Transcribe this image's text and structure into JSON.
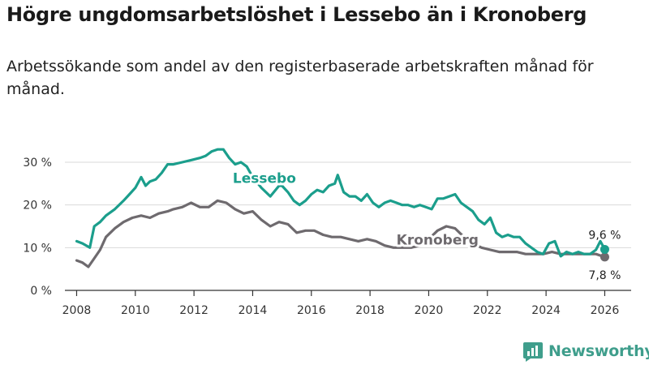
{
  "title": "Högre ungdomsarbetslöshet i Lessebo än i Kronoberg",
  "subtitle": "Arbetssökande som andel av den registerbaserade arbetskraften månad för månad.",
  "brand": {
    "name": "Newsworthy",
    "icon": "newsworthy-logo-icon",
    "color": "#3f9e8c"
  },
  "chart_data": {
    "type": "line",
    "title": "Högre ungdomsarbetslöshet i Lessebo än i Kronoberg",
    "xlabel": "",
    "ylabel": "",
    "xlim": [
      2007.6,
      2026.9
    ],
    "ylim": [
      0,
      30
    ],
    "grid": true,
    "y_ticks": [
      0,
      10,
      20,
      30
    ],
    "y_tick_labels": [
      "0 %",
      "10 %",
      "20 %",
      "30 %"
    ],
    "x_ticks": [
      2008,
      2010,
      2012,
      2014,
      2016,
      2018,
      2020,
      2022,
      2024,
      2026
    ],
    "x_tick_labels": [
      "2008",
      "2010",
      "2012",
      "2014",
      "2016",
      "2018",
      "2020",
      "2022",
      "2024",
      "2026"
    ],
    "series": [
      {
        "name": "Lessebo",
        "color": "#1b9e8c",
        "x": [
          2008.0,
          2008.2,
          2008.45,
          2008.6,
          2008.8,
          2009.0,
          2009.3,
          2009.6,
          2009.8,
          2010.0,
          2010.2,
          2010.35,
          2010.5,
          2010.7,
          2010.9,
          2011.1,
          2011.3,
          2011.6,
          2011.9,
          2012.2,
          2012.4,
          2012.6,
          2012.8,
          2013.0,
          2013.2,
          2013.4,
          2013.6,
          2013.8,
          2014.0,
          2014.3,
          2014.6,
          2014.9,
          2015.0,
          2015.2,
          2015.4,
          2015.6,
          2015.8,
          2016.0,
          2016.2,
          2016.4,
          2016.6,
          2016.8,
          2016.9,
          2017.1,
          2017.3,
          2017.5,
          2017.7,
          2017.9,
          2018.1,
          2018.3,
          2018.5,
          2018.7,
          2018.9,
          2019.1,
          2019.3,
          2019.5,
          2019.7,
          2019.9,
          2020.1,
          2020.3,
          2020.5,
          2020.7,
          2020.9,
          2021.1,
          2021.3,
          2021.5,
          2021.7,
          2021.9,
          2022.1,
          2022.3,
          2022.5,
          2022.7,
          2022.9,
          2023.1,
          2023.3,
          2023.5,
          2023.7,
          2023.9,
          2024.1,
          2024.3,
          2024.5,
          2024.7,
          2024.9,
          2025.1,
          2025.3,
          2025.5,
          2025.7,
          2025.85,
          2026.0
        ],
        "y": [
          11.5,
          11.0,
          10.0,
          15.0,
          16.0,
          17.5,
          19.0,
          21.0,
          22.5,
          24.0,
          26.5,
          24.5,
          25.5,
          26.0,
          27.5,
          29.5,
          29.5,
          30.0,
          30.5,
          31.0,
          31.5,
          32.5,
          33.0,
          33.0,
          31.0,
          29.5,
          30.0,
          29.0,
          26.5,
          24.0,
          22.0,
          24.5,
          24.5,
          23.0,
          21.0,
          20.0,
          21.0,
          22.5,
          23.5,
          23.0,
          24.5,
          25.0,
          27.0,
          23.0,
          22.0,
          22.0,
          21.0,
          22.5,
          20.5,
          19.5,
          20.5,
          21.0,
          20.5,
          20.0,
          20.0,
          19.5,
          20.0,
          19.5,
          19.0,
          21.5,
          21.5,
          22.0,
          22.5,
          20.5,
          19.5,
          18.5,
          16.5,
          15.5,
          17.0,
          13.5,
          12.5,
          13.0,
          12.5,
          12.5,
          11.0,
          10.0,
          9.0,
          8.5,
          11.0,
          11.5,
          8.0,
          9.0,
          8.5,
          9.0,
          8.5,
          8.5,
          9.5,
          11.5,
          9.6
        ]
      },
      {
        "name": "Kronoberg",
        "color": "#6e6a6e",
        "x": [
          2008.0,
          2008.2,
          2008.4,
          2008.6,
          2008.8,
          2009.0,
          2009.3,
          2009.6,
          2009.9,
          2010.2,
          2010.5,
          2010.8,
          2011.1,
          2011.3,
          2011.6,
          2011.9,
          2012.2,
          2012.5,
          2012.8,
          2013.1,
          2013.4,
          2013.7,
          2014.0,
          2014.3,
          2014.6,
          2014.9,
          2015.2,
          2015.5,
          2015.8,
          2016.1,
          2016.4,
          2016.7,
          2017.0,
          2017.3,
          2017.6,
          2017.9,
          2018.2,
          2018.5,
          2018.8,
          2019.1,
          2019.4,
          2019.7,
          2020.0,
          2020.3,
          2020.6,
          2020.9,
          2021.2,
          2021.5,
          2021.8,
          2022.1,
          2022.4,
          2022.7,
          2023.0,
          2023.3,
          2023.6,
          2023.9,
          2024.2,
          2024.5,
          2024.8,
          2025.1,
          2025.4,
          2025.7,
          2026.0
        ],
        "y": [
          7.0,
          6.5,
          5.5,
          7.5,
          9.5,
          12.5,
          14.5,
          16.0,
          17.0,
          17.5,
          17.0,
          18.0,
          18.5,
          19.0,
          19.5,
          20.5,
          19.5,
          19.5,
          21.0,
          20.5,
          19.0,
          18.0,
          18.5,
          16.5,
          15.0,
          16.0,
          15.5,
          13.5,
          14.0,
          14.0,
          13.0,
          12.5,
          12.5,
          12.0,
          11.5,
          12.0,
          11.5,
          10.5,
          10.0,
          10.0,
          10.0,
          10.5,
          12.0,
          14.0,
          15.0,
          14.5,
          12.5,
          11.0,
          10.0,
          9.5,
          9.0,
          9.0,
          9.0,
          8.5,
          8.5,
          8.5,
          9.0,
          8.5,
          8.5,
          8.5,
          8.5,
          8.5,
          7.8
        ]
      }
    ],
    "series_labels": [
      {
        "text": "Lessebo",
        "color": "#1b9e8c"
      },
      {
        "text": "Kronoberg",
        "color": "#6e6a6e"
      }
    ],
    "end_labels": [
      {
        "series": "Lessebo",
        "text": "9,6 %"
      },
      {
        "series": "Kronoberg",
        "text": "7,8 %"
      }
    ]
  }
}
